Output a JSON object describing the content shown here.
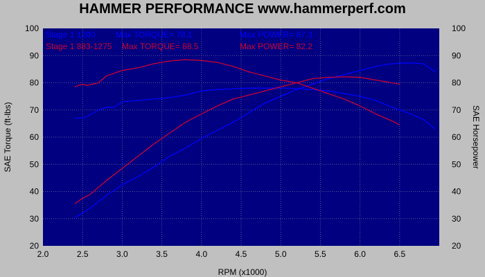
{
  "chart_data": {
    "type": "line",
    "title": "HAMMER PERFORMANCE www.hammerperf.com",
    "xlabel": "RPM (x1000)",
    "ylabel_left": "SAE Torque (ft-lbs)",
    "ylabel_right": "SAE Horsepower",
    "xlim": [
      2.0,
      7.0
    ],
    "ylim": [
      20,
      100
    ],
    "x_ticks": [
      "2.0",
      "2.5",
      "3.0",
      "3.5",
      "4.0",
      "4.5",
      "5.0",
      "5.5",
      "6.0",
      "6.5"
    ],
    "y_ticks": [
      "20",
      "30",
      "40",
      "50",
      "60",
      "70",
      "80",
      "90",
      "100"
    ],
    "grid": true,
    "background": "#000080",
    "legend": [
      {
        "label": "Stage 1 1200",
        "torque": "Max TORQUE= 78.1",
        "power": "Max POWER= 87.3",
        "color": "#0000ff"
      },
      {
        "label": "Stage 1 883-1275",
        "torque": "Max TORQUE= 88.5",
        "power": "Max POWER= 82.2",
        "color": "#cc0033"
      }
    ],
    "series": [
      {
        "name": "Stage 1 1200 Torque",
        "color": "#0000ff",
        "x": [
          2.4,
          2.5,
          2.55,
          2.7,
          2.8,
          2.9,
          3.0,
          3.2,
          3.4,
          3.6,
          3.8,
          4.0,
          4.2,
          4.4,
          4.6,
          4.8,
          5.0,
          5.2,
          5.4,
          5.6,
          5.8,
          6.0,
          6.2,
          6.4,
          6.6,
          6.8,
          6.95
        ],
        "y": [
          67,
          67,
          67.5,
          70,
          71,
          71,
          73,
          73.5,
          74,
          74.5,
          75.5,
          77,
          77.5,
          77.8,
          78,
          78,
          78.1,
          77.8,
          77.5,
          77,
          76,
          75,
          73.5,
          71,
          69,
          66.5,
          63
        ]
      },
      {
        "name": "Stage 1 1200 Power",
        "color": "#0000ff",
        "x": [
          2.4,
          2.5,
          2.6,
          2.8,
          3.0,
          3.2,
          3.4,
          3.6,
          3.8,
          4.0,
          4.2,
          4.4,
          4.6,
          4.8,
          5.0,
          5.2,
          5.4,
          5.6,
          5.8,
          6.0,
          6.2,
          6.4,
          6.6,
          6.8,
          6.95
        ],
        "y": [
          30.5,
          32,
          34,
          38.5,
          42.5,
          45.5,
          49,
          53,
          56,
          59.5,
          62.5,
          65.5,
          69,
          72.5,
          75,
          77.5,
          79.5,
          81.5,
          83,
          84.5,
          86,
          87,
          87.3,
          87,
          84
        ]
      },
      {
        "name": "Stage 1 883-1275 Torque",
        "color": "#cc0033",
        "x": [
          2.4,
          2.5,
          2.55,
          2.7,
          2.8,
          3.0,
          3.2,
          3.4,
          3.6,
          3.8,
          4.0,
          4.2,
          4.4,
          4.6,
          4.8,
          5.0,
          5.2,
          5.4,
          5.6,
          5.8,
          6.0,
          6.2,
          6.4,
          6.5
        ],
        "y": [
          78.5,
          79.5,
          79,
          80,
          82.5,
          84.5,
          85.5,
          87,
          88,
          88.5,
          88.2,
          87.5,
          86,
          84,
          82.5,
          81,
          80,
          78,
          76,
          74,
          71.5,
          68.5,
          66,
          64.5
        ]
      },
      {
        "name": "Stage 1 883-1275 Power",
        "color": "#cc0033",
        "x": [
          2.4,
          2.5,
          2.6,
          2.8,
          3.0,
          3.2,
          3.4,
          3.6,
          3.8,
          4.0,
          4.2,
          4.4,
          4.6,
          4.8,
          5.0,
          5.2,
          5.4,
          5.6,
          5.8,
          6.0,
          6.2,
          6.4,
          6.5
        ],
        "y": [
          35.5,
          37.5,
          39,
          44,
          48.5,
          53,
          57.5,
          61.5,
          65.5,
          68.5,
          71.5,
          74,
          75.5,
          77,
          78.5,
          80,
          81.5,
          82,
          82.2,
          82,
          81,
          80,
          79.5
        ]
      }
    ]
  }
}
